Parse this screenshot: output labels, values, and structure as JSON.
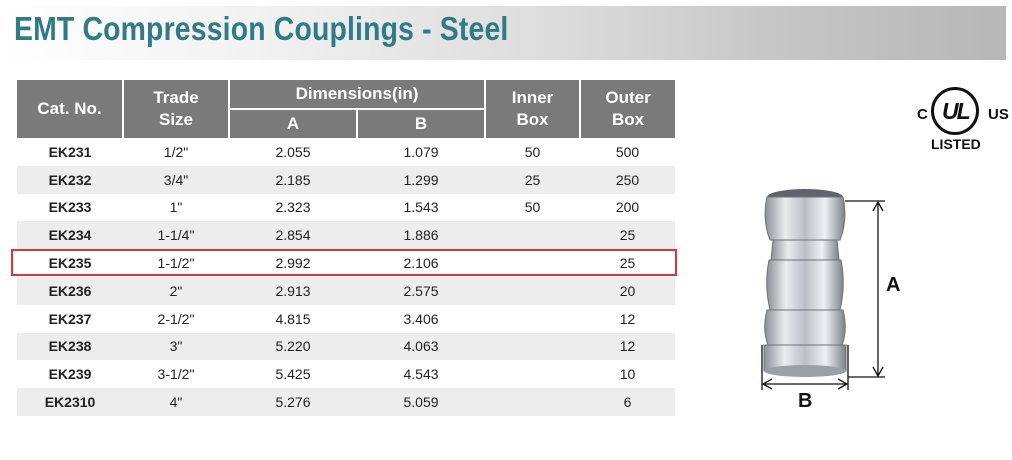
{
  "page": {
    "title": "EMT Compression Couplings - Steel"
  },
  "table": {
    "headers": {
      "cat_no": "Cat. No.",
      "trade": "Trade",
      "size": "Size",
      "dimensions": "Dimensions(in)",
      "a": "A",
      "b": "B",
      "inner": "Inner",
      "inner_box": "Box",
      "outer": "Outer",
      "outer_box": "Box"
    },
    "rows": [
      {
        "cat": "EK231",
        "size": "1/2\"",
        "a": "2.055",
        "b": "1.079",
        "inner": "50",
        "outer": "500"
      },
      {
        "cat": "EK232",
        "size": "3/4\"",
        "a": "2.185",
        "b": "1.299",
        "inner": "25",
        "outer": "250"
      },
      {
        "cat": "EK233",
        "size": "1\"",
        "a": "2.323",
        "b": "1.543",
        "inner": "50",
        "outer": "200"
      },
      {
        "cat": "EK234",
        "size": "1-1/4\"",
        "a": "2.854",
        "b": "1.886",
        "inner": "",
        "outer": "25"
      },
      {
        "cat": "EK235",
        "size": "1-1/2\"",
        "a": "2.992",
        "b": "2.106",
        "inner": "",
        "outer": "25"
      },
      {
        "cat": "EK236",
        "size": "2\"",
        "a": "2.913",
        "b": "2.575",
        "inner": "",
        "outer": "20"
      },
      {
        "cat": "EK237",
        "size": "2-1/2\"",
        "a": "4.815",
        "b": "3.406",
        "inner": "",
        "outer": "12"
      },
      {
        "cat": "EK238",
        "size": "3\"",
        "a": "5.220",
        "b": "4.063",
        "inner": "",
        "outer": "12"
      },
      {
        "cat": "EK239",
        "size": "3-1/2\"",
        "a": "5.425",
        "b": "4.543",
        "inner": "",
        "outer": "10"
      },
      {
        "cat": "EK2310",
        "size": "4\"",
        "a": "5.276",
        "b": "5.059",
        "inner": "",
        "outer": "6"
      }
    ]
  },
  "certification": {
    "c": "C",
    "ul": "UL",
    "us": "US",
    "listed": "LISTED"
  },
  "figure": {
    "dim_a": "A",
    "dim_b": "B"
  },
  "colors": {
    "title": "#2f7c86",
    "header_bg": "#7a7a7a",
    "row_shade": "#ededed",
    "highlight": "#e0323a"
  }
}
